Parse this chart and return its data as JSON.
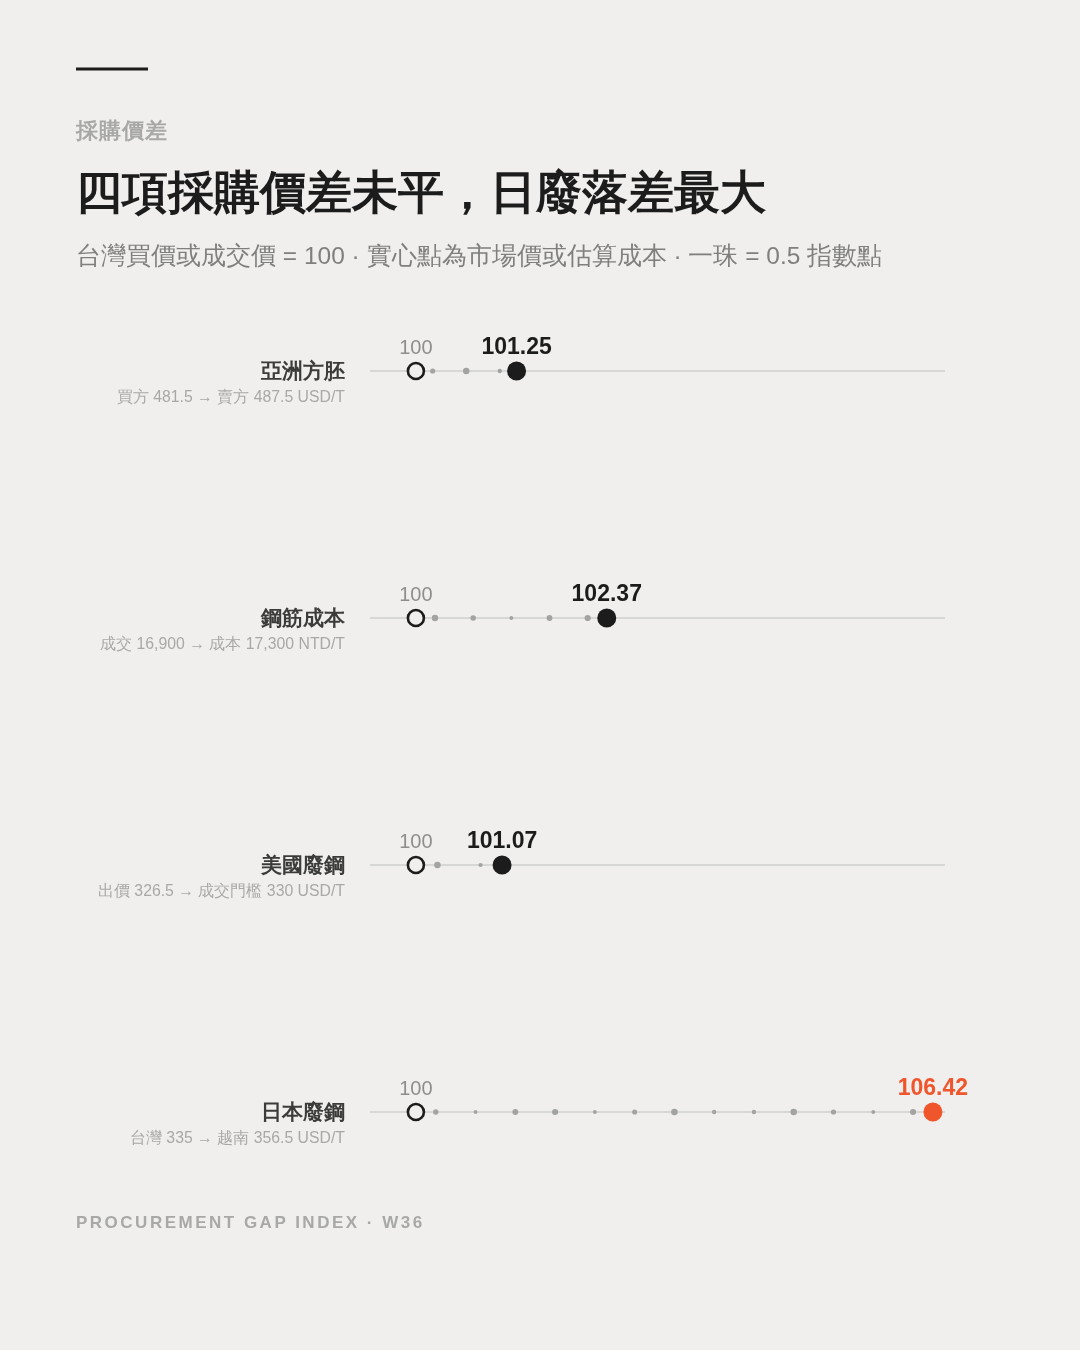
{
  "chart_data": {
    "type": "scatter",
    "orientation": "horizontal",
    "title": "四項採購價差未平，日廢落差最大",
    "subtitle": "台灣買價或成交價 = 100 · 實心點為市場價或估算成本 · 一珠 = 0.5 指數點",
    "categories": [
      "亞洲方胚",
      "鋼筋成本",
      "美國廢鋼",
      "日本廢鋼"
    ],
    "series": [
      {
        "color": "#1c1c1c",
        "values": [
          100,
          100,
          100,
          100
        ]
      },
      {
        "colors": [
          "#1c1c1c",
          "#1c1c1c",
          "#1c1c1c",
          "#f0562c"
        ],
        "values": [
          101.25,
          102.37,
          101.07,
          106.42
        ]
      }
    ],
    "xlim": [
      99.43,
      106.57
    ],
    "grid": "y",
    "marker": "circle",
    "data_labels": true,
    "tick_labels": "y",
    "annotations": [
      "採購價差",
      "買方 481.5 → 賣方 487.5 USD/T",
      "成交 16,900 → 成本 17,300 NTD/T",
      "出價 326.5 → 成交門檻 330 USD/T",
      "台灣 335 → 越南 356.5 USD/T",
      "PROCUREMENT GAP INDEX · W36"
    ]
  }
}
